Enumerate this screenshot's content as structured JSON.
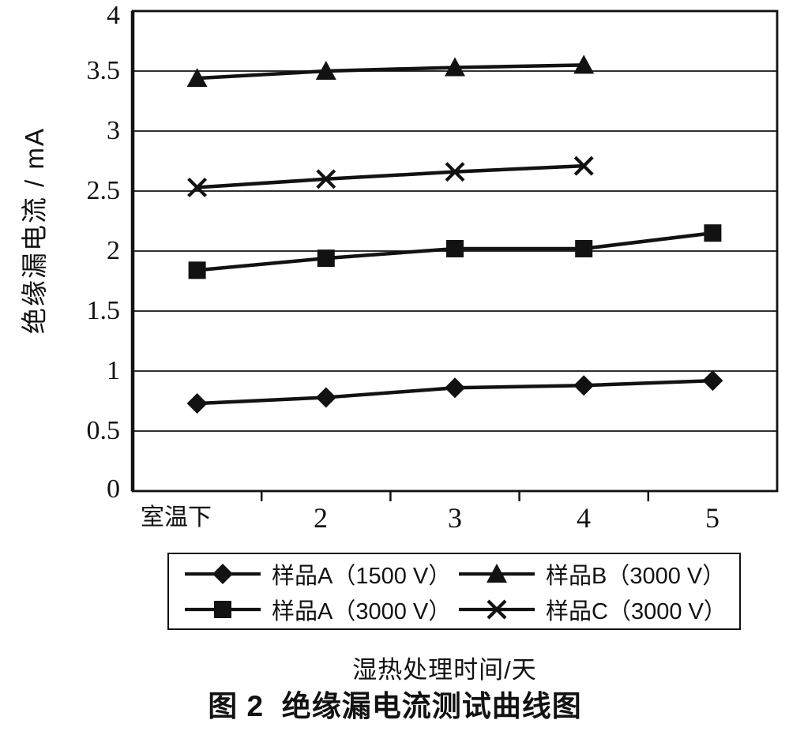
{
  "chart_data": {
    "type": "line",
    "title": "图 2  绝缘漏电流测试曲线图",
    "xlabel": "湿热处理时间/天",
    "ylabel": "绝缘漏电流 / mA",
    "categories": [
      "室温下",
      "2",
      "3",
      "4",
      "5"
    ],
    "ylim": [
      0,
      4
    ],
    "ytick_step": 0.5,
    "ytick_labels": [
      "4",
      "3.5",
      "3",
      "2.5",
      "2",
      "1.5",
      "1",
      "0.5",
      "0"
    ],
    "grid": "horizontal-only",
    "legend_position": "boxed-below-axis",
    "legend_order": [
      0,
      2,
      1,
      3
    ],
    "series": [
      {
        "name": "样品A（1500 V）",
        "marker": "diamond",
        "values": [
          0.73,
          0.78,
          0.86,
          0.88,
          0.92
        ]
      },
      {
        "name": "样品A（3000 V）",
        "marker": "square",
        "values": [
          1.84,
          1.94,
          2.02,
          2.02,
          2.15
        ]
      },
      {
        "name": "样品B（3000 V）",
        "marker": "triangle",
        "values": [
          3.44,
          3.5,
          3.53,
          3.55
        ]
      },
      {
        "name": "样品C（3000 V）",
        "marker": "x",
        "values": [
          2.53,
          2.6,
          2.66,
          2.71
        ]
      }
    ],
    "colors": {
      "stroke": "#121212",
      "background": "#ffffff"
    }
  }
}
